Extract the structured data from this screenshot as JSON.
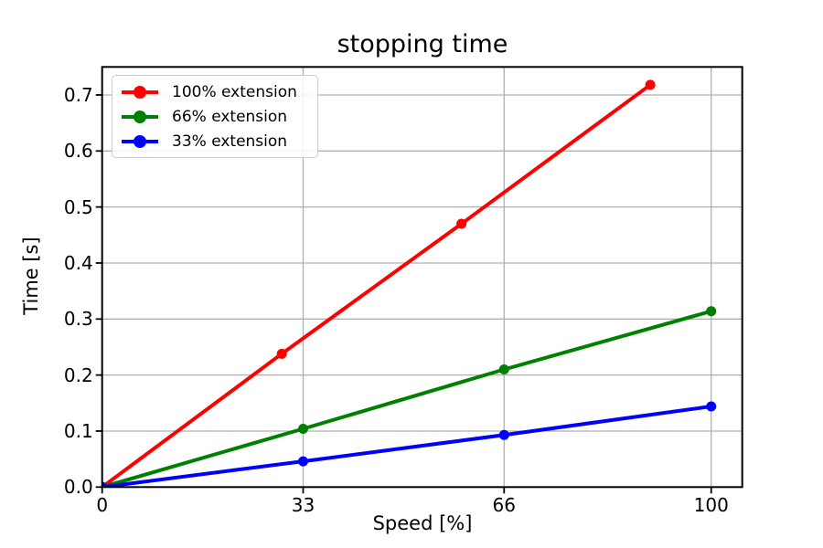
{
  "figure": {
    "background": "#ffffff",
    "spine_color": "#000000",
    "text_color": "#000000"
  },
  "chart_data": {
    "type": "line",
    "title": "stopping time",
    "xlabel": "Speed [%]",
    "ylabel": "Time [s]",
    "xlim": [
      0,
      105.1
    ],
    "ylim": [
      0,
      0.75
    ],
    "xticks": [
      0,
      33,
      66,
      100
    ],
    "xtick_labels": [
      "0",
      "33",
      "66",
      "100"
    ],
    "yticks": [
      0,
      0.1,
      0.2,
      0.3,
      0.4,
      0.5,
      0.6,
      0.7
    ],
    "ytick_labels": [
      "0.0",
      "0.1",
      "0.2",
      "0.3",
      "0.4",
      "0.5",
      "0.6",
      "0.7"
    ],
    "grid": true,
    "grid_color": "#b0b0b0",
    "legend_position": "upper-left",
    "series": [
      {
        "name": "100% extension",
        "color": "#ff0000",
        "x": [
          0,
          29.5,
          59,
          90
        ],
        "y": [
          0,
          0.238,
          0.47,
          0.718
        ]
      },
      {
        "name": "66% extension",
        "color": "#008000",
        "x": [
          0,
          33,
          66,
          100
        ],
        "y": [
          0,
          0.104,
          0.21,
          0.314
        ]
      },
      {
        "name": "33% extension",
        "color": "#0000ff",
        "x": [
          0,
          33,
          66,
          100
        ],
        "y": [
          0,
          0.046,
          0.093,
          0.144
        ]
      }
    ]
  }
}
